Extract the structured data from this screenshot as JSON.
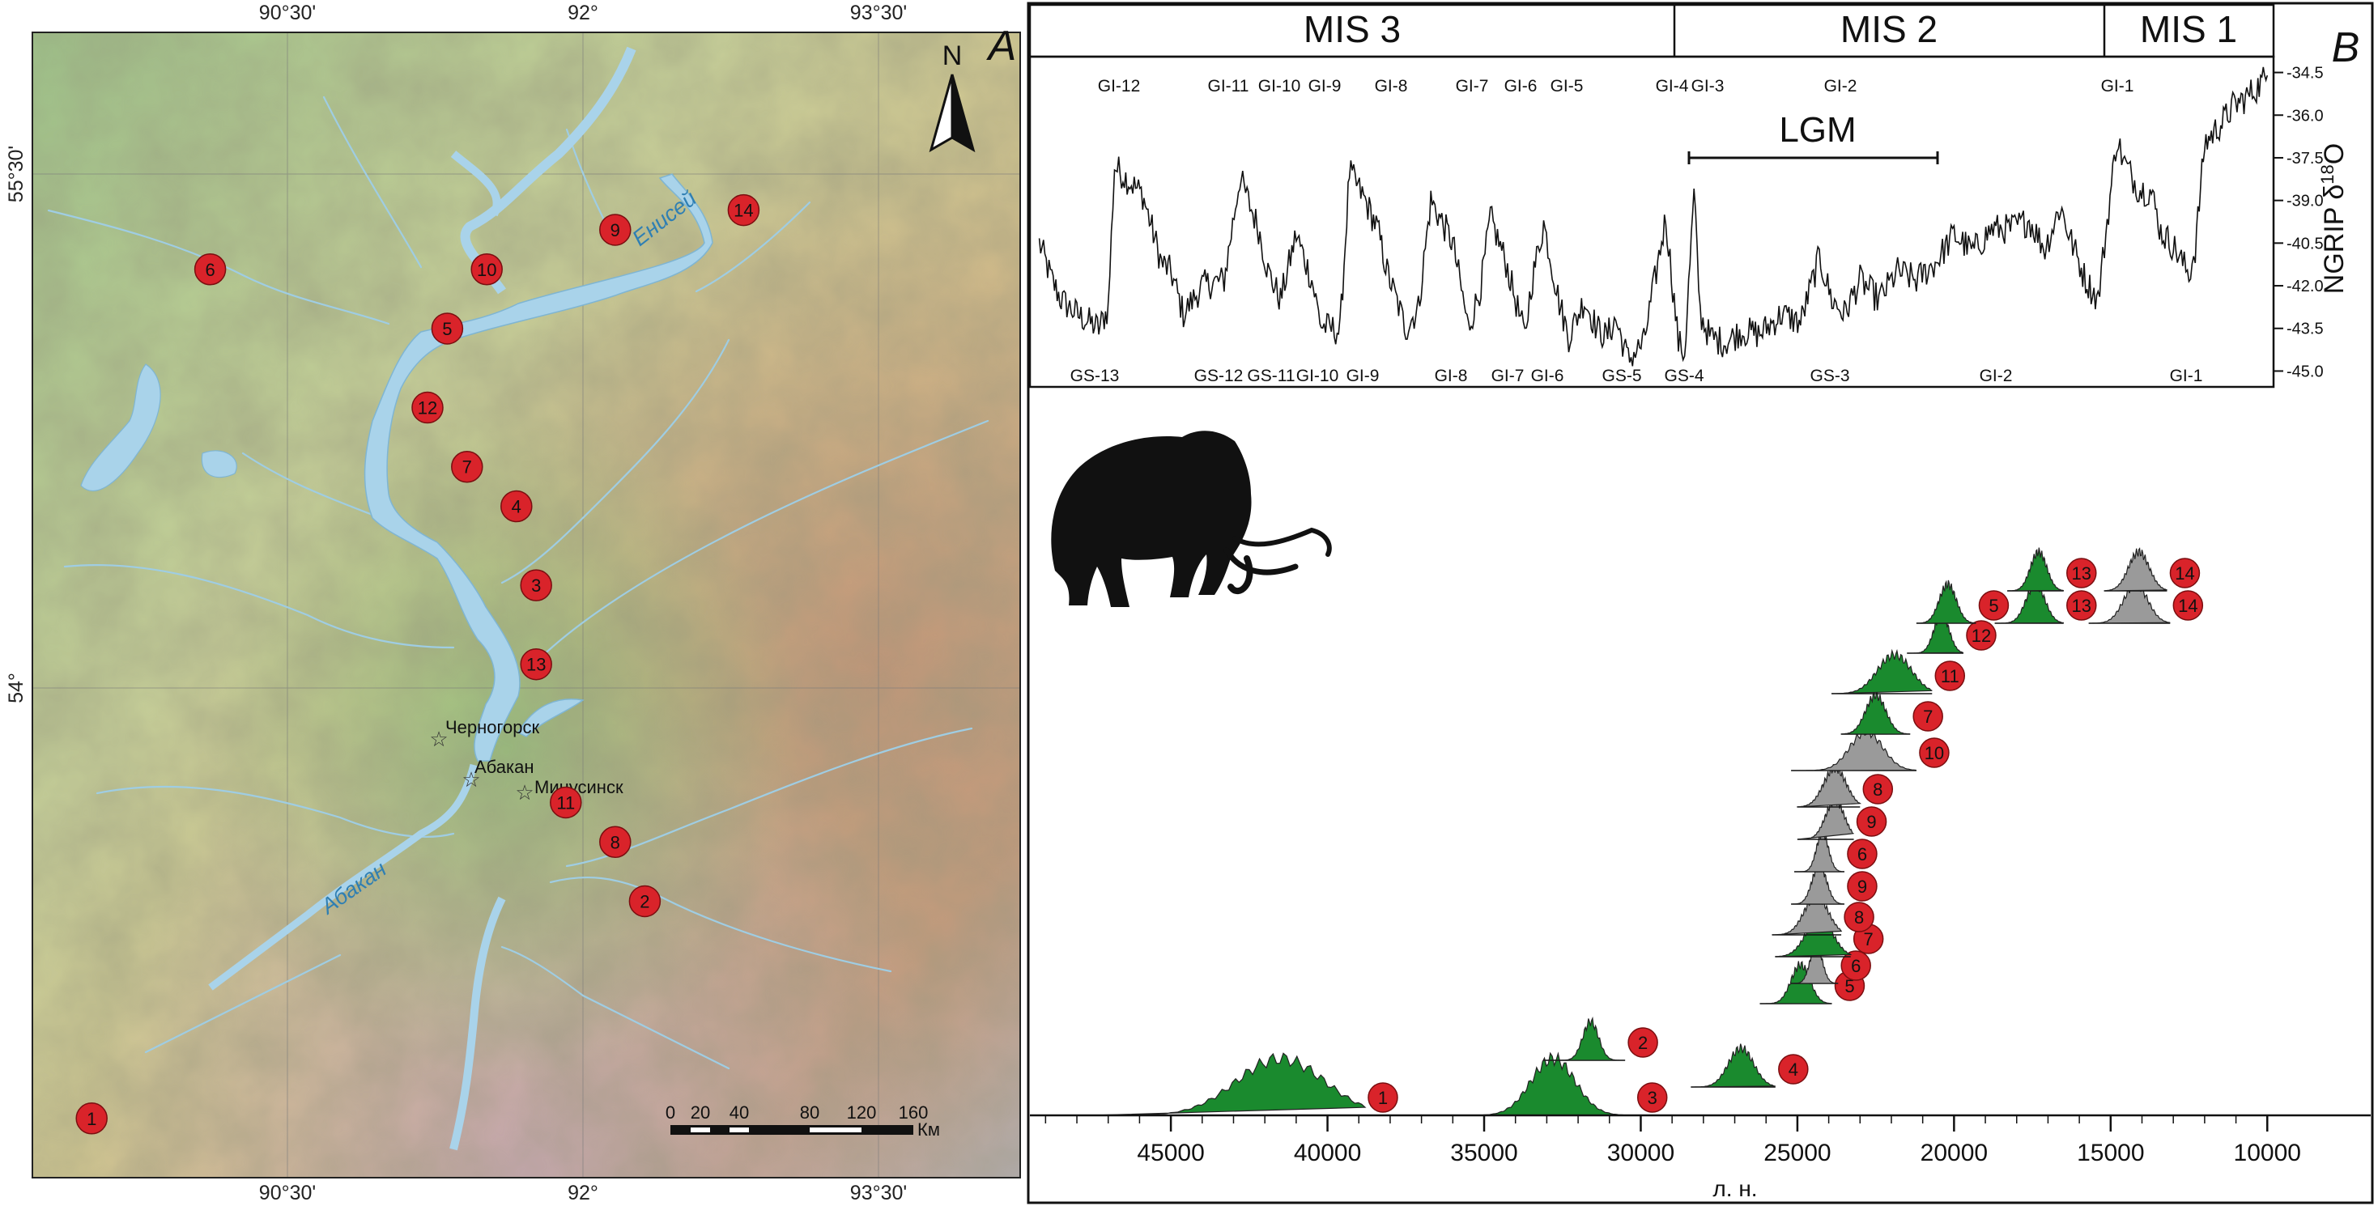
{
  "map": {
    "panel_letter": "A",
    "north_label": "N",
    "lon_labels": [
      "90°30'",
      "92°",
      "93°30'"
    ],
    "lat_labels": [
      "55°30'",
      "54°"
    ],
    "river_label_yenisei": "Енисей",
    "river_label_abakan": "Абакан",
    "towns": [
      "Черногорск",
      "Абакан",
      "Минусинск"
    ],
    "sites": [
      {
        "n": "1",
        "lon": 89.3,
        "lat": 53.05
      },
      {
        "n": "2",
        "lon": 92.1,
        "lat": 53.6
      },
      {
        "n": "3",
        "lon": 91.55,
        "lat": 54.4
      },
      {
        "n": "4",
        "lon": 91.45,
        "lat": 54.6
      },
      {
        "n": "5",
        "lon": 91.1,
        "lat": 55.05
      },
      {
        "n": "6",
        "lon": 89.9,
        "lat": 55.2
      },
      {
        "n": "7",
        "lon": 91.2,
        "lat": 54.7
      },
      {
        "n": "8",
        "lon": 91.95,
        "lat": 53.75
      },
      {
        "n": "9",
        "lon": 91.95,
        "lat": 55.3
      },
      {
        "n": "10",
        "lon": 91.3,
        "lat": 55.2
      },
      {
        "n": "11",
        "lon": 91.7,
        "lat": 53.85
      },
      {
        "n": "12",
        "lon": 91.0,
        "lat": 54.85
      },
      {
        "n": "13",
        "lon": 91.55,
        "lat": 54.2
      },
      {
        "n": "14",
        "lon": 92.6,
        "lat": 55.35
      }
    ],
    "scale_ticks": [
      "0",
      "20",
      "40",
      "80",
      "120",
      "160"
    ],
    "scale_unit": "Км"
  },
  "chart_panel": {
    "panel_letter": "B",
    "mis_labels": [
      "MIS 3",
      "MIS 2",
      "MIS 1"
    ],
    "interstadials_top": [
      "GI-12",
      "GI-11",
      "GI-10",
      "GI-9",
      "GI-8",
      "GI-7",
      "GI-6",
      "GI-5",
      "GI-4",
      "GI-3",
      "GI-2",
      "GI-1"
    ],
    "stadials_bottom": [
      "GS-13",
      "GS-12",
      "GS-11",
      "GI-10",
      "GI-9",
      "GI-8",
      "GI-7",
      "GI-6",
      "GS-5",
      "GS-4",
      "GS-3",
      "GI-2",
      "GI-1"
    ],
    "lgm_label": "LGM",
    "y_axis_label": "NGRIP δ18O",
    "y_axis_label_main": "NGRIP δ",
    "y_axis_label_sup": "18",
    "y_axis_label_tail": "O",
    "x_axis_label": "л. н.",
    "x_ticks": [
      "45000",
      "40000",
      "35000",
      "30000",
      "25000",
      "20000",
      "15000",
      "10000"
    ]
  },
  "chart_data": [
    {
      "type": "line",
      "title": "",
      "xlabel": "",
      "ylabel": "NGRIP δ18O",
      "xlim": [
        49500,
        9800
      ],
      "ylim": [
        -45.5,
        -34
      ],
      "y_ticks": [
        "-34.5",
        "-36.0",
        "-37.5",
        "-39.0",
        "-40.5",
        "-42.0",
        "-43.5",
        "-45.0"
      ],
      "y_tick_values": [
        -34.5,
        -36.0,
        -37.5,
        -39.0,
        -40.5,
        -42.0,
        -43.5,
        -45.0
      ],
      "anchors": {
        "x": [
          49200,
          48800,
          48500,
          48000,
          47300,
          47000,
          46800,
          45900,
          45600,
          45300,
          45000,
          44600,
          44000,
          43300,
          42800,
          42200,
          41900,
          41500,
          41000,
          40500,
          40200,
          39600,
          39300,
          38800,
          38400,
          38100,
          37500,
          37100,
          36700,
          36000,
          35500,
          35100,
          34800,
          34300,
          33700,
          33500,
          33100,
          32600,
          32300,
          31800,
          31400,
          31100,
          30800,
          30400,
          29900,
          29200,
          28800,
          28600,
          28300,
          28100,
          27800,
          27300,
          26800,
          26200,
          25500,
          24900,
          24300,
          23900,
          23500,
          23000,
          22400,
          21800,
          21200,
          20600,
          20000,
          19400,
          18800,
          18200,
          17600,
          17100,
          16600,
          16300,
          15800,
          15400,
          15200,
          14800,
          14600,
          14100,
          13700,
          13400,
          13000,
          12700,
          12500,
          12300,
          12000,
          11700,
          11400,
          11100,
          10700,
          10300,
          10000
        ],
        "y": [
          -40.5,
          -41.8,
          -42.5,
          -43.0,
          -43.5,
          -42.8,
          -37.8,
          -38.8,
          -40.0,
          -41.2,
          -41.5,
          -43.0,
          -42.0,
          -41.8,
          -38.2,
          -40.0,
          -41.5,
          -42.5,
          -40.2,
          -41.8,
          -43.4,
          -43.6,
          -38.0,
          -39.0,
          -40.0,
          -41.5,
          -43.5,
          -42.8,
          -39.0,
          -40.5,
          -43.5,
          -42.0,
          -39.6,
          -41.2,
          -43.8,
          -42.0,
          -39.8,
          -42.6,
          -43.8,
          -42.5,
          -43.5,
          -43.8,
          -43.2,
          -44.6,
          -44.0,
          -39.6,
          -44.0,
          -44.4,
          -38.8,
          -43.0,
          -43.8,
          -44.0,
          -43.6,
          -43.7,
          -43.0,
          -43.3,
          -41.0,
          -42.5,
          -43.0,
          -41.8,
          -42.5,
          -41.5,
          -41.8,
          -41.2,
          -40.2,
          -40.8,
          -40.0,
          -40.0,
          -39.7,
          -40.7,
          -39.2,
          -40.3,
          -41.8,
          -42.5,
          -40.6,
          -36.8,
          -37.6,
          -38.6,
          -38.7,
          -40.1,
          -40.6,
          -41.2,
          -41.6,
          -40.7,
          -37.0,
          -36.6,
          -36.2,
          -35.7,
          -35.4,
          -35.0,
          -34.6
        ]
      }
    },
    {
      "type": "area",
      "title": "",
      "xlabel": "л. н.",
      "ylabel": "",
      "xlim": [
        49500,
        9800
      ],
      "distributions": [
        {
          "site": "1",
          "mean": 41500,
          "sd": 1400,
          "color": "#1a8a2e",
          "left": 47500,
          "right": 38800,
          "row": 0
        },
        {
          "site": "3",
          "mean": 32800,
          "sd": 700,
          "color": "#1a8a2e",
          "left": 35200,
          "right": 30200,
          "row": 0
        },
        {
          "site": "2",
          "mean": 31600,
          "sd": 250,
          "color": "#1a8a2e",
          "left": 33100,
          "right": 30500,
          "row": 1
        },
        {
          "site": "4",
          "mean": 26800,
          "sd": 400,
          "color": "#1a8a2e",
          "left": 28400,
          "right": 25700,
          "row": 2
        },
        {
          "site": "5",
          "mean": 24900,
          "sd": 300,
          "color": "#1a8a2e",
          "left": 26200,
          "right": 23900,
          "row": 3
        },
        {
          "site": "6",
          "mean": 24400,
          "sd": 190,
          "color": "#9a9a9a",
          "left": 25200,
          "right": 23700,
          "row": 4
        },
        {
          "site": "7",
          "mean": 24300,
          "sd": 420,
          "color": "#1a8a2e",
          "left": 25700,
          "right": 23300,
          "row": 5
        },
        {
          "site": "8",
          "mean": 24400,
          "sd": 380,
          "color": "#9a9a9a",
          "left": 25800,
          "right": 23600,
          "row": 6
        },
        {
          "site": "9",
          "mean": 24300,
          "sd": 230,
          "color": "#9a9a9a",
          "left": 25200,
          "right": 23500,
          "row": 7
        },
        {
          "site": "6",
          "mean": 24200,
          "sd": 190,
          "color": "#9a9a9a",
          "left": 25100,
          "right": 23500,
          "row": 8
        },
        {
          "site": "9",
          "mean": 23800,
          "sd": 300,
          "color": "#9a9a9a",
          "left": 25000,
          "right": 23200,
          "row": 9
        },
        {
          "site": "8",
          "mean": 23800,
          "sd": 360,
          "color": "#9a9a9a",
          "left": 25000,
          "right": 23000,
          "row": 10
        },
        {
          "site": "10",
          "mean": 22800,
          "sd": 520,
          "color": "#9a9a9a",
          "left": 25200,
          "right": 21200,
          "row": 11
        },
        {
          "site": "7",
          "mean": 22500,
          "sd": 320,
          "color": "#1a8a2e",
          "left": 23600,
          "right": 21400,
          "row": 12
        },
        {
          "site": "11",
          "mean": 21900,
          "sd": 540,
          "color": "#1a8a2e",
          "left": 23900,
          "right": 20700,
          "row": 13
        },
        {
          "site": "12",
          "mean": 20400,
          "sd": 240,
          "color": "#1a8a2e",
          "left": 21500,
          "right": 19700,
          "row": 14
        },
        {
          "site": "5",
          "mean": 20200,
          "sd": 270,
          "color": "#1a8a2e",
          "left": 21200,
          "right": 19300,
          "row": 15
        },
        {
          "site": "13",
          "mean": 17400,
          "sd": 300,
          "color": "#1a8a2e",
          "left": 18700,
          "right": 16500,
          "row": 15
        },
        {
          "site": "14",
          "mean": 14200,
          "sd": 380,
          "color": "#9a9a9a",
          "left": 15700,
          "right": 13100,
          "row": 15
        },
        {
          "site": "13",
          "mean": 17300,
          "sd": 260,
          "color": "#1a8a2e",
          "left": 18300,
          "right": 16500,
          "row": 16
        },
        {
          "site": "14",
          "mean": 14100,
          "sd": 330,
          "color": "#9a9a9a",
          "left": 15200,
          "right": 13200,
          "row": 16
        }
      ]
    }
  ]
}
